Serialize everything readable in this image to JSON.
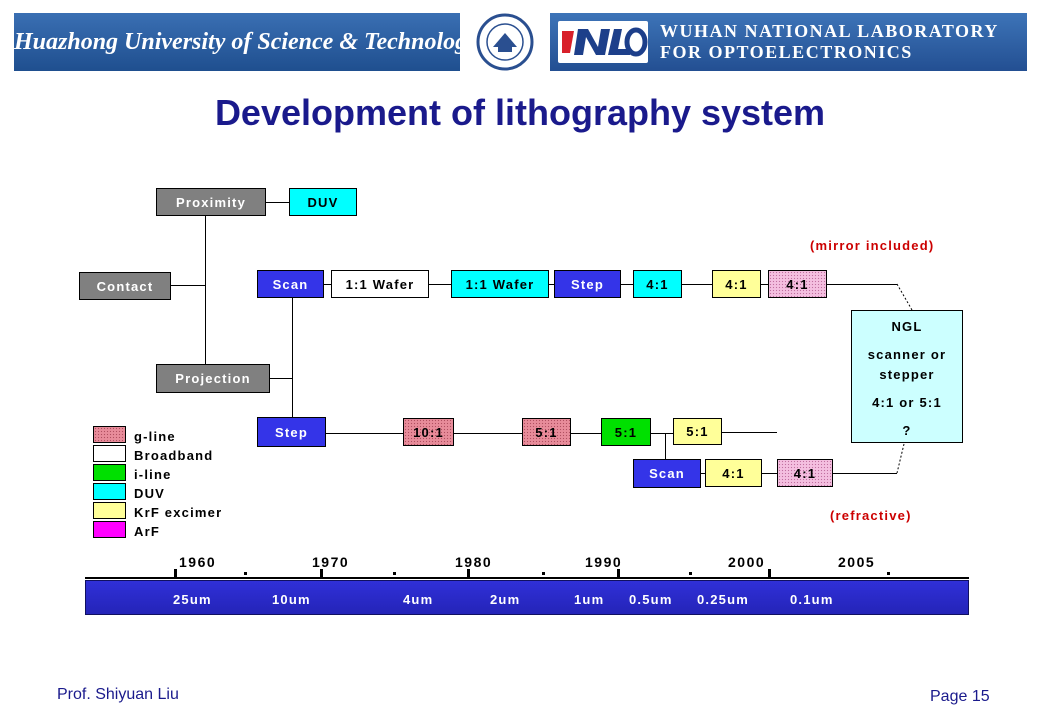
{
  "header": {
    "university": "Huazhong University of Science & Technology",
    "lab_line1": "WUHAN NATIONAL LABORATORY",
    "lab_line2": "FOR OPTOELECTRONICS"
  },
  "title": "Development of lithography system",
  "boxes": {
    "proximity": "Proximity",
    "proximity_duv": "DUV",
    "contact": "Contact",
    "projection": "Projection",
    "scan_top": "Scan",
    "wafer_white": "1:1 Wafer",
    "wafer_cyan": "1:1 Wafer",
    "step_top": "Step",
    "ratio_cyan": "4:1",
    "ratio_yellow": "4:1",
    "ratio_arf": "4:1",
    "step_bottom": "Step",
    "ratio_10_1": "10:1",
    "ratio_5_1_pink": "5:1",
    "ratio_5_1_green": "5:1",
    "ratio_5_1_yellow": "5:1",
    "scan_bottom": "Scan",
    "scan_ratio_yellow": "4:1",
    "scan_ratio_arf": "4:1"
  },
  "notes": {
    "mirror": "(mirror included)",
    "refractive": "(refractive)"
  },
  "ngl": {
    "title": "NGL",
    "line1": "scanner or",
    "line2": "stepper",
    "line3": "4:1 or 5:1",
    "line4": "?"
  },
  "legend": [
    {
      "label": "g-line",
      "color": "#e88c9a"
    },
    {
      "label": "Broadband",
      "color": "#ffffff"
    },
    {
      "label": "i-line",
      "color": "#00e000"
    },
    {
      "label": "DUV",
      "color": "#00ffff"
    },
    {
      "label": "KrF excimer",
      "color": "#ffff99"
    },
    {
      "label": "ArF",
      "color": "#ff00ff"
    }
  ],
  "timeline": {
    "years": [
      "1960",
      "1970",
      "1980",
      "1990",
      "2000",
      "2005"
    ],
    "nodes": [
      "25um",
      "10um",
      "4um",
      "2um",
      "1um",
      "0.5um",
      "0.25um",
      "0.1um"
    ]
  },
  "footer": {
    "author": "Prof. Shiyuan Liu",
    "page": "Page 15"
  },
  "colors": {
    "title": "#1a1a8c",
    "banner": "#2a5ea4",
    "timeline_bar": "#2a2ad0",
    "note_red": "#cc0000"
  }
}
